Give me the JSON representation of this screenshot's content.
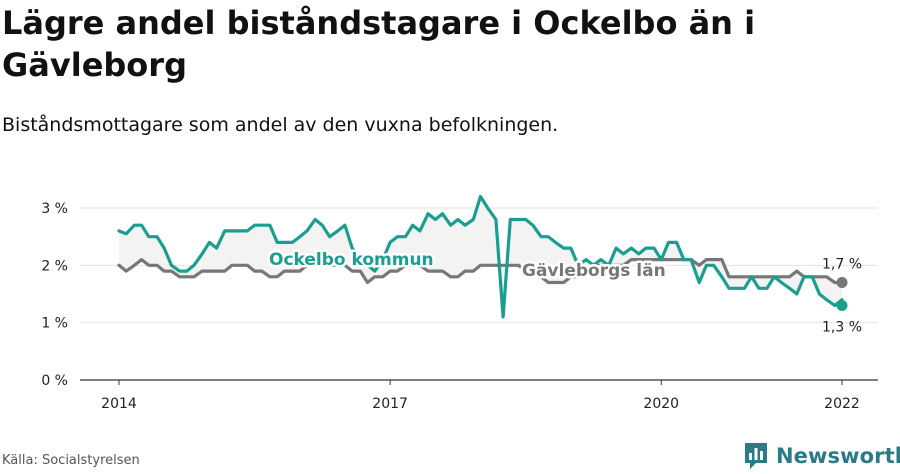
{
  "title": "Lägre andel biståndstagare i Ockelbo än i Gävleborg",
  "subtitle": "Biståndsmottagare som andel av den vuxna befolkningen.",
  "source": "Källa: Socialstyrelsen",
  "brand": "Newsworthy",
  "colors": {
    "ockelbo": "#1a9e8f",
    "gavleborg": "#777777",
    "fill": "#f3f3f3",
    "grid": "#e3e3e3",
    "axis": "#333333",
    "brand": "#2b7a87"
  },
  "chart_data": {
    "type": "line",
    "xlabel": "",
    "ylabel": "",
    "ylim": [
      0,
      3.2
    ],
    "xlim": [
      2014,
      2022.4
    ],
    "x_ticks": [
      {
        "value": 2014,
        "label": "2014"
      },
      {
        "value": 2017,
        "label": "2017"
      },
      {
        "value": 2020,
        "label": "2020"
      },
      {
        "value": 2022,
        "label": "2022"
      }
    ],
    "y_ticks": [
      {
        "value": 0,
        "label": "0 %"
      },
      {
        "value": 1,
        "label": "1 %"
      },
      {
        "value": 2,
        "label": "2 %"
      },
      {
        "value": 3,
        "label": "3 %"
      }
    ],
    "grid": true,
    "series": [
      {
        "name": "Ockelbo kommun",
        "color": "#1a9e8f",
        "end_label": "1,3 %",
        "points": [
          [
            2014.0,
            2.6
          ],
          [
            2014.08,
            2.55
          ],
          [
            2014.17,
            2.7
          ],
          [
            2014.25,
            2.7
          ],
          [
            2014.33,
            2.5
          ],
          [
            2014.42,
            2.5
          ],
          [
            2014.5,
            2.3
          ],
          [
            2014.58,
            2.0
          ],
          [
            2014.67,
            1.9
          ],
          [
            2014.75,
            1.9
          ],
          [
            2014.83,
            2.0
          ],
          [
            2014.92,
            2.2
          ],
          [
            2015.0,
            2.4
          ],
          [
            2015.08,
            2.3
          ],
          [
            2015.17,
            2.6
          ],
          [
            2015.25,
            2.6
          ],
          [
            2015.33,
            2.6
          ],
          [
            2015.42,
            2.6
          ],
          [
            2015.5,
            2.7
          ],
          [
            2015.58,
            2.7
          ],
          [
            2015.67,
            2.7
          ],
          [
            2015.75,
            2.4
          ],
          [
            2015.83,
            2.4
          ],
          [
            2015.92,
            2.4
          ],
          [
            2016.0,
            2.5
          ],
          [
            2016.08,
            2.6
          ],
          [
            2016.17,
            2.8
          ],
          [
            2016.25,
            2.7
          ],
          [
            2016.33,
            2.5
          ],
          [
            2016.42,
            2.6
          ],
          [
            2016.5,
            2.7
          ],
          [
            2016.58,
            2.3
          ],
          [
            2016.67,
            2.1
          ],
          [
            2016.75,
            2.0
          ],
          [
            2016.83,
            1.9
          ],
          [
            2016.92,
            2.1
          ],
          [
            2017.0,
            2.4
          ],
          [
            2017.08,
            2.5
          ],
          [
            2017.17,
            2.5
          ],
          [
            2017.25,
            2.7
          ],
          [
            2017.33,
            2.6
          ],
          [
            2017.42,
            2.9
          ],
          [
            2017.5,
            2.8
          ],
          [
            2017.58,
            2.9
          ],
          [
            2017.67,
            2.7
          ],
          [
            2017.75,
            2.8
          ],
          [
            2017.83,
            2.7
          ],
          [
            2017.92,
            2.8
          ],
          [
            2018.0,
            3.2
          ],
          [
            2018.08,
            3.0
          ],
          [
            2018.17,
            2.8
          ],
          [
            2018.25,
            1.1
          ],
          [
            2018.33,
            2.8
          ],
          [
            2018.42,
            2.8
          ],
          [
            2018.5,
            2.8
          ],
          [
            2018.58,
            2.7
          ],
          [
            2018.67,
            2.5
          ],
          [
            2018.75,
            2.5
          ],
          [
            2018.83,
            2.4
          ],
          [
            2018.92,
            2.3
          ],
          [
            2019.0,
            2.3
          ],
          [
            2019.08,
            2.0
          ],
          [
            2019.17,
            2.1
          ],
          [
            2019.25,
            2.0
          ],
          [
            2019.33,
            2.1
          ],
          [
            2019.42,
            2.0
          ],
          [
            2019.5,
            2.3
          ],
          [
            2019.58,
            2.2
          ],
          [
            2019.67,
            2.3
          ],
          [
            2019.75,
            2.2
          ],
          [
            2019.83,
            2.3
          ],
          [
            2019.92,
            2.3
          ],
          [
            2020.0,
            2.1
          ],
          [
            2020.08,
            2.4
          ],
          [
            2020.17,
            2.4
          ],
          [
            2020.25,
            2.1
          ],
          [
            2020.33,
            2.1
          ],
          [
            2020.42,
            1.7
          ],
          [
            2020.5,
            2.0
          ],
          [
            2020.58,
            2.0
          ],
          [
            2020.67,
            1.8
          ],
          [
            2020.75,
            1.6
          ],
          [
            2020.83,
            1.6
          ],
          [
            2020.92,
            1.6
          ],
          [
            2021.0,
            1.8
          ],
          [
            2021.08,
            1.6
          ],
          [
            2021.17,
            1.6
          ],
          [
            2021.25,
            1.8
          ],
          [
            2021.33,
            1.7
          ],
          [
            2021.42,
            1.6
          ],
          [
            2021.5,
            1.5
          ],
          [
            2021.58,
            1.8
          ],
          [
            2021.67,
            1.8
          ],
          [
            2021.75,
            1.5
          ],
          [
            2021.83,
            1.4
          ],
          [
            2021.92,
            1.3
          ],
          [
            2022.0,
            1.4
          ],
          [
            2022.0,
            1.3
          ]
        ]
      },
      {
        "name": "Gävleborgs län",
        "color": "#777777",
        "end_label": "1,7 %",
        "points": [
          [
            2014.0,
            2.0
          ],
          [
            2014.08,
            1.9
          ],
          [
            2014.17,
            2.0
          ],
          [
            2014.25,
            2.1
          ],
          [
            2014.33,
            2.0
          ],
          [
            2014.42,
            2.0
          ],
          [
            2014.5,
            1.9
          ],
          [
            2014.58,
            1.9
          ],
          [
            2014.67,
            1.8
          ],
          [
            2014.75,
            1.8
          ],
          [
            2014.83,
            1.8
          ],
          [
            2014.92,
            1.9
          ],
          [
            2015.0,
            1.9
          ],
          [
            2015.08,
            1.9
          ],
          [
            2015.17,
            1.9
          ],
          [
            2015.25,
            2.0
          ],
          [
            2015.33,
            2.0
          ],
          [
            2015.42,
            2.0
          ],
          [
            2015.5,
            1.9
          ],
          [
            2015.58,
            1.9
          ],
          [
            2015.67,
            1.8
          ],
          [
            2015.75,
            1.8
          ],
          [
            2015.83,
            1.9
          ],
          [
            2015.92,
            1.9
          ],
          [
            2016.0,
            1.9
          ],
          [
            2016.08,
            2.0
          ],
          [
            2016.17,
            2.0
          ],
          [
            2016.25,
            2.0
          ],
          [
            2016.33,
            2.0
          ],
          [
            2016.42,
            2.0
          ],
          [
            2016.5,
            2.0
          ],
          [
            2016.58,
            1.9
          ],
          [
            2016.67,
            1.9
          ],
          [
            2016.75,
            1.7
          ],
          [
            2016.83,
            1.8
          ],
          [
            2016.92,
            1.8
          ],
          [
            2017.0,
            1.9
          ],
          [
            2017.08,
            1.9
          ],
          [
            2017.17,
            2.0
          ],
          [
            2017.25,
            2.0
          ],
          [
            2017.33,
            2.0
          ],
          [
            2017.42,
            1.9
          ],
          [
            2017.5,
            1.9
          ],
          [
            2017.58,
            1.9
          ],
          [
            2017.67,
            1.8
          ],
          [
            2017.75,
            1.8
          ],
          [
            2017.83,
            1.9
          ],
          [
            2017.92,
            1.9
          ],
          [
            2018.0,
            2.0
          ],
          [
            2018.08,
            2.0
          ],
          [
            2018.17,
            2.0
          ],
          [
            2018.25,
            2.0
          ],
          [
            2018.33,
            2.0
          ],
          [
            2018.42,
            2.0
          ],
          [
            2018.5,
            1.9
          ],
          [
            2018.58,
            1.9
          ],
          [
            2018.67,
            1.8
          ],
          [
            2018.75,
            1.7
          ],
          [
            2018.83,
            1.7
          ],
          [
            2018.92,
            1.7
          ],
          [
            2019.0,
            1.8
          ],
          [
            2019.08,
            1.8
          ],
          [
            2019.17,
            1.9
          ],
          [
            2019.25,
            2.0
          ],
          [
            2019.33,
            2.0
          ],
          [
            2019.42,
            2.0
          ],
          [
            2019.5,
            2.0
          ],
          [
            2019.58,
            2.0
          ],
          [
            2019.67,
            2.1
          ],
          [
            2019.75,
            2.1
          ],
          [
            2019.83,
            2.1
          ],
          [
            2019.92,
            2.1
          ],
          [
            2020.0,
            2.1
          ],
          [
            2020.08,
            2.1
          ],
          [
            2020.17,
            2.1
          ],
          [
            2020.25,
            2.1
          ],
          [
            2020.33,
            2.1
          ],
          [
            2020.42,
            2.0
          ],
          [
            2020.5,
            2.1
          ],
          [
            2020.58,
            2.1
          ],
          [
            2020.67,
            2.1
          ],
          [
            2020.75,
            1.8
          ],
          [
            2020.83,
            1.8
          ],
          [
            2020.92,
            1.8
          ],
          [
            2021.0,
            1.8
          ],
          [
            2021.08,
            1.8
          ],
          [
            2021.17,
            1.8
          ],
          [
            2021.25,
            1.8
          ],
          [
            2021.33,
            1.8
          ],
          [
            2021.42,
            1.8
          ],
          [
            2021.5,
            1.9
          ],
          [
            2021.58,
            1.8
          ],
          [
            2021.67,
            1.8
          ],
          [
            2021.75,
            1.8
          ],
          [
            2021.83,
            1.8
          ],
          [
            2021.92,
            1.7
          ],
          [
            2022.0,
            1.7
          ]
        ]
      }
    ]
  }
}
